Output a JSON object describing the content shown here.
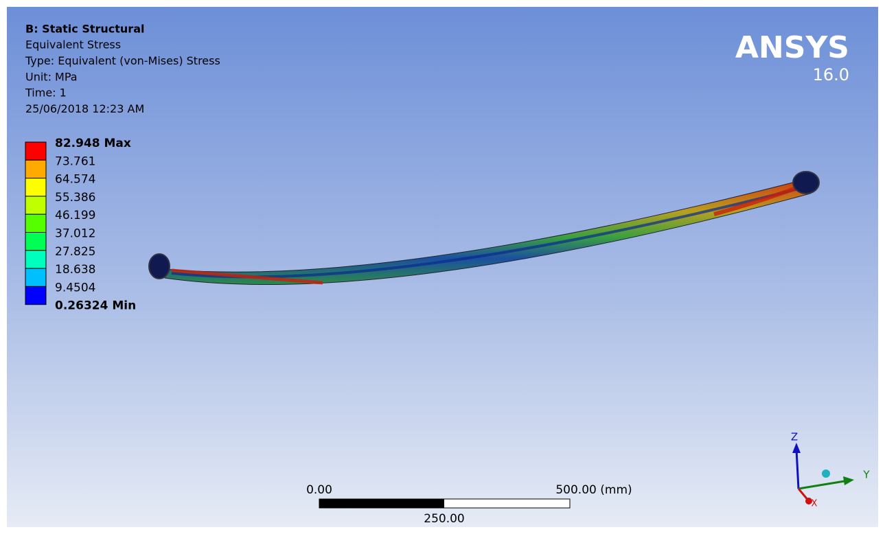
{
  "header": {
    "title": "B: Static Structural",
    "lines": [
      "Equivalent Stress",
      "Type: Equivalent (von-Mises) Stress",
      "Unit: MPa",
      "Time: 1",
      "25/06/2018 12:23 AM"
    ]
  },
  "logo": {
    "name": "ANSYS",
    "version": "16.0"
  },
  "legend": {
    "entries": [
      "82.948 Max",
      "73.761",
      "64.574",
      "55.386",
      "46.199",
      "37.012",
      "27.825",
      "18.638",
      "9.4504",
      "0.26324 Min"
    ],
    "colors": [
      "#ff0000",
      "#ffaa00",
      "#ffff00",
      "#bfff00",
      "#55ff00",
      "#00ff55",
      "#00ffbf",
      "#00bfff",
      "#0000ff"
    ]
  },
  "scale": {
    "start": "0.00",
    "end": "500.00 (mm)",
    "mid": "250.00"
  },
  "triad": {
    "z": "Z",
    "y": "Y",
    "x": "X"
  }
}
